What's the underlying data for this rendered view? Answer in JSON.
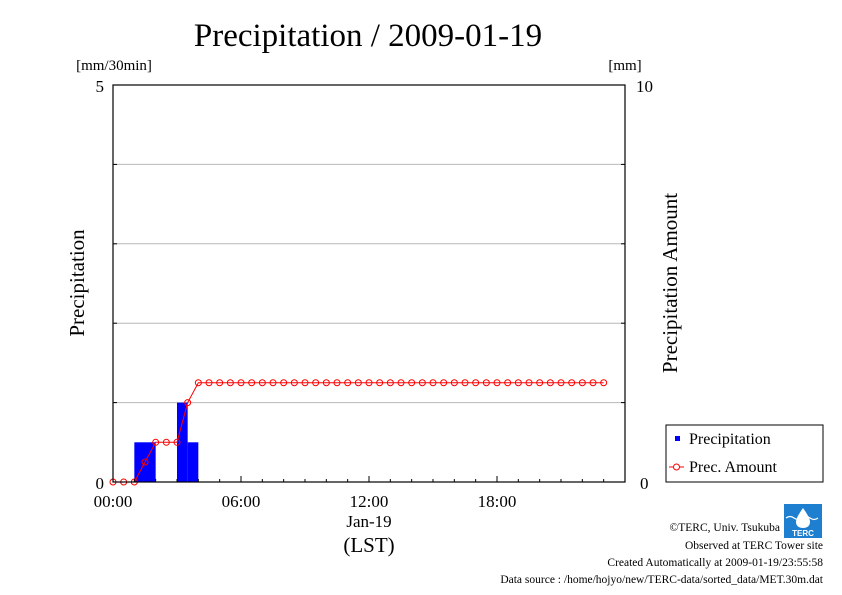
{
  "chart_data": {
    "type": "bar",
    "title": "Precipitation / 2009-01-19",
    "xlabel": "(LST)",
    "x_date_label": "Jan-19",
    "ylabel_left": "Precipitation",
    "ylabel_right": "Precipitation Amount",
    "unit_left": "[mm/30min]",
    "unit_right": "[mm]",
    "ylim_left": [
      0,
      5
    ],
    "ylim_right": [
      0,
      10
    ],
    "left_ticks": [
      "0",
      "5"
    ],
    "right_ticks": [
      "0",
      "10"
    ],
    "x_ticks": [
      "00:00",
      "06:00",
      "12:00",
      "18:00"
    ],
    "xlim_hours": [
      0,
      24
    ],
    "grid": true,
    "legend_placement": "bottom-right",
    "series": [
      {
        "name": "Precipitation",
        "type": "bar",
        "axis": "left",
        "color": "#0000ff",
        "times_hours": [
          1.0,
          1.5,
          3.0,
          3.5
        ],
        "values": [
          0.5,
          0.5,
          1.0,
          0.5
        ]
      },
      {
        "name": "Prec. Amount",
        "type": "line",
        "axis": "right",
        "color": "#ff0000",
        "times_hours": [
          0.0,
          0.5,
          1.0,
          1.5,
          2.0,
          2.5,
          3.0,
          3.5,
          4.0,
          4.5,
          5.0,
          5.5,
          6.0,
          6.5,
          7.0,
          7.5,
          8.0,
          8.5,
          9.0,
          9.5,
          10.0,
          10.5,
          11.0,
          11.5,
          12.0,
          12.5,
          13.0,
          13.5,
          14.0,
          14.5,
          15.0,
          15.5,
          16.0,
          16.5,
          17.0,
          17.5,
          18.0,
          18.5,
          19.0,
          19.5,
          20.0,
          20.5,
          21.0,
          21.5,
          22.0,
          22.5,
          23.0
        ],
        "values": [
          0,
          0,
          0,
          0.5,
          1.0,
          1.0,
          1.0,
          2.0,
          2.5,
          2.5,
          2.5,
          2.5,
          2.5,
          2.5,
          2.5,
          2.5,
          2.5,
          2.5,
          2.5,
          2.5,
          2.5,
          2.5,
          2.5,
          2.5,
          2.5,
          2.5,
          2.5,
          2.5,
          2.5,
          2.5,
          2.5,
          2.5,
          2.5,
          2.5,
          2.5,
          2.5,
          2.5,
          2.5,
          2.5,
          2.5,
          2.5,
          2.5,
          2.5,
          2.5,
          2.5,
          2.5,
          2.5
        ]
      }
    ]
  },
  "credits": {
    "copyright": "©TERC, Univ. Tsukuba",
    "observed": "Observed at TERC Tower site",
    "created": "Created Automatically at 2009-01-19/23:55:58",
    "source": "Data source : /home/hojyo/new/TERC-data/sorted_data/MET.30m.dat",
    "logo_text": "TERC"
  }
}
